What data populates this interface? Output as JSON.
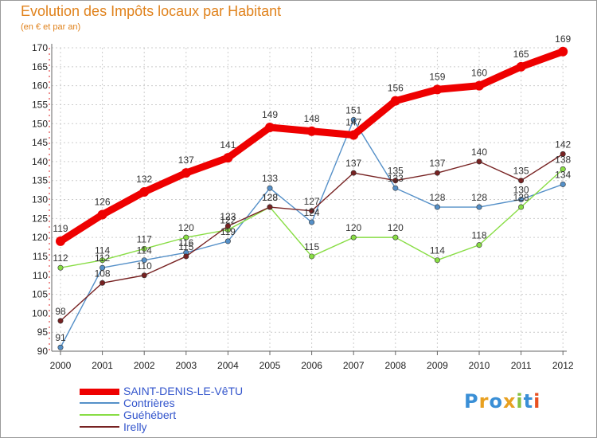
{
  "chart_data": {
    "type": "line",
    "title": "Evolution des Impôts locaux par Habitant",
    "subtitle": "(en € et par an)",
    "xlabel": "",
    "ylabel": "",
    "x": [
      "2000",
      "2001",
      "2002",
      "2003",
      "2004",
      "2005",
      "2006",
      "2007",
      "2008",
      "2009",
      "2010",
      "2011",
      "2012"
    ],
    "ylim": [
      90,
      170
    ],
    "yticks": [
      90,
      95,
      100,
      105,
      110,
      115,
      120,
      125,
      130,
      135,
      140,
      145,
      150,
      155,
      160,
      165,
      170
    ],
    "grid": true,
    "series": [
      {
        "name": "SAINT-DENIS-LE-VêTU",
        "color": "#ee0000",
        "values": [
          119,
          126,
          132,
          137,
          141,
          149,
          148,
          147,
          156,
          159,
          160,
          165,
          169
        ]
      },
      {
        "name": "Contrières",
        "color": "#5590c8",
        "values": [
          91,
          112,
          114,
          116,
          119,
          133,
          124,
          151,
          133,
          128,
          128,
          130,
          134
        ]
      },
      {
        "name": "Guéhébert",
        "color": "#88dd44",
        "values": [
          112,
          114,
          117,
          120,
          122,
          128,
          115,
          120,
          120,
          114,
          118,
          128,
          138
        ]
      },
      {
        "name": "Irelly",
        "color": "#772222",
        "values": [
          98,
          108,
          110,
          115,
          123,
          128,
          127,
          137,
          135,
          137,
          140,
          135,
          142
        ]
      }
    ]
  },
  "legend": {
    "items": [
      {
        "label": "SAINT-DENIS-LE-VêTU",
        "color": "#ee0000",
        "text_color": "#3355cc"
      },
      {
        "label": "Contrières",
        "color": "#5590c8",
        "text_color": "#3355cc"
      },
      {
        "label": "Guéhébert",
        "color": "#88dd44",
        "text_color": "#3355cc"
      },
      {
        "label": "Irelly",
        "color": "#772222",
        "text_color": "#3355cc"
      }
    ]
  },
  "logo": {
    "text": "Proxiti",
    "letter_colors": [
      "#3a8fd6",
      "#e8a020",
      "#3a8fd6",
      "#e8a020",
      "#88c040",
      "#3a8fd6",
      "#e85020"
    ]
  }
}
